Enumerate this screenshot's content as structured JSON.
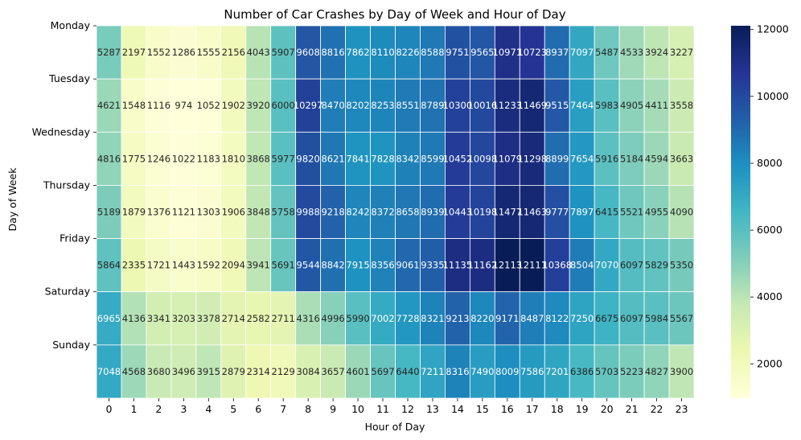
{
  "chart_data": {
    "type": "heatmap",
    "title": "Number of Car Crashes by Day of Week and Hour of Day",
    "xlabel": "Hour of Day",
    "ylabel": "Day of Week",
    "x_categories": [
      "0",
      "1",
      "2",
      "3",
      "4",
      "5",
      "6",
      "7",
      "8",
      "9",
      "10",
      "11",
      "12",
      "13",
      "14",
      "15",
      "16",
      "17",
      "18",
      "19",
      "20",
      "21",
      "22",
      "23"
    ],
    "y_categories": [
      "Monday",
      "Tuesday",
      "Wednesday",
      "Thursday",
      "Friday",
      "Saturday",
      "Sunday"
    ],
    "cell_labels": [
      [
        "5287",
        "2197",
        "1552",
        "1286",
        "1555",
        "2156",
        "4043",
        "5907",
        "9608",
        "8816",
        "7862",
        "8110",
        "8226",
        "8588",
        "9751",
        "9565",
        "10971",
        "10723",
        "8937",
        "7097",
        "5487",
        "4533",
        "3924",
        "3227"
      ],
      [
        "4621",
        "1548",
        "1116",
        "974",
        "1052",
        "1902",
        "3920",
        "6000",
        "10297",
        "8470",
        "8202",
        "8253",
        "8551",
        "8789",
        "10300",
        "10016",
        "11233",
        "11469",
        "9515",
        "7464",
        "5983",
        "4905",
        "4411",
        "3558"
      ],
      [
        "4816",
        "1775",
        "1246",
        "1022",
        "1183",
        "1810",
        "3868",
        "5977",
        "9820",
        "8621",
        "7841",
        "7828",
        "8342",
        "8599",
        "10452",
        "10098",
        "11079",
        "11298",
        "8899",
        "7654",
        "5916",
        "5184",
        "4594",
        "3663"
      ],
      [
        "5189",
        "1879",
        "1376",
        "1121",
        "1303",
        "1906",
        "3848",
        "5758",
        "9988",
        "9218",
        "8242",
        "8372",
        "8658",
        "8939",
        "10443",
        "10198",
        "11477",
        "11463",
        "9777",
        "7897",
        "6415",
        "5521",
        "4955",
        "4090"
      ],
      [
        "5864",
        "2335",
        "1721",
        "1443",
        "1592",
        "2094",
        "3941",
        "5691",
        "9544",
        "8842",
        "7915",
        "8356",
        "9061",
        "9335",
        "11135",
        "11162",
        "12113",
        "12111",
        "10368",
        "8504",
        "7070",
        "6097",
        "5829",
        "5350"
      ],
      [
        "6965",
        "4136",
        "3341",
        "3203",
        "3378",
        "2714",
        "2582",
        "2711",
        "4316",
        "4996",
        "5990",
        "7002",
        "7728",
        "8321",
        "9213",
        "8220",
        "9171",
        "8487",
        "8122",
        "7250",
        "6675",
        "6097",
        "5984",
        "5567"
      ],
      [
        "7048",
        "4568",
        "3680",
        "3496",
        "3915",
        "2879",
        "2314",
        "2129",
        "3084",
        "3657",
        "4601",
        "5697",
        "6440",
        "7211",
        "8316",
        "7490",
        "8009",
        "7586",
        "7201",
        "6386",
        "5703",
        "5223",
        "4827",
        "3900"
      ]
    ],
    "values": [
      [
        5287,
        2197,
        1552,
        1286,
        1555,
        2156,
        4043,
        5907,
        9608,
        8816,
        7862,
        8110,
        8226,
        8588,
        9751,
        9565,
        10971,
        10723,
        8937,
        7097,
        5487,
        4533,
        3924,
        3227
      ],
      [
        4621,
        1548,
        1116,
        974,
        1052,
        1902,
        3920,
        6000,
        10297,
        8470,
        8202,
        8253,
        8551,
        8789,
        10300,
        10016,
        11233,
        11469,
        9515,
        7464,
        5983,
        4905,
        4411,
        3558
      ],
      [
        4816,
        1775,
        1246,
        1022,
        1183,
        1810,
        3868,
        5977,
        9820,
        8621,
        7841,
        7828,
        8342,
        8599,
        10452,
        10098,
        11079,
        11298,
        8899,
        7654,
        5916,
        5184,
        4594,
        3663
      ],
      [
        5189,
        1879,
        1376,
        1121,
        1303,
        1906,
        3848,
        5758,
        9988,
        9218,
        8242,
        8372,
        8658,
        8939,
        10443,
        10198,
        11477,
        11463,
        9777,
        7897,
        6415,
        5521,
        4955,
        4090
      ],
      [
        5864,
        2335,
        1721,
        1443,
        1592,
        2094,
        3941,
        5691,
        9544,
        8842,
        7915,
        8356,
        9061,
        9335,
        11135,
        11162,
        12113,
        12111,
        10368,
        8504,
        7070,
        6097,
        5829,
        5350
      ],
      [
        6965,
        4136,
        3341,
        3203,
        3378,
        2714,
        2582,
        2711,
        4316,
        4996,
        5990,
        7002,
        7728,
        8321,
        9213,
        8220,
        9171,
        8487,
        8122,
        7250,
        6675,
        6097,
        5984,
        5567
      ],
      [
        7048,
        4568,
        3680,
        3496,
        3915,
        2879,
        2314,
        2129,
        3084,
        3657,
        4601,
        5697,
        6440,
        7211,
        8316,
        7490,
        8009,
        7586,
        7201,
        6386,
        5703,
        5223,
        4827,
        3900
      ]
    ],
    "colorscale": "YlGnBu",
    "color_range": [
      974,
      12113
    ],
    "colorbar_ticks": [
      "2000",
      "4000",
      "6000",
      "8000",
      "10000",
      "12000"
    ],
    "colorbar_tick_values": [
      2000,
      4000,
      6000,
      8000,
      10000,
      12000
    ],
    "grid": false,
    "cell_border_color": "#ffffff"
  }
}
